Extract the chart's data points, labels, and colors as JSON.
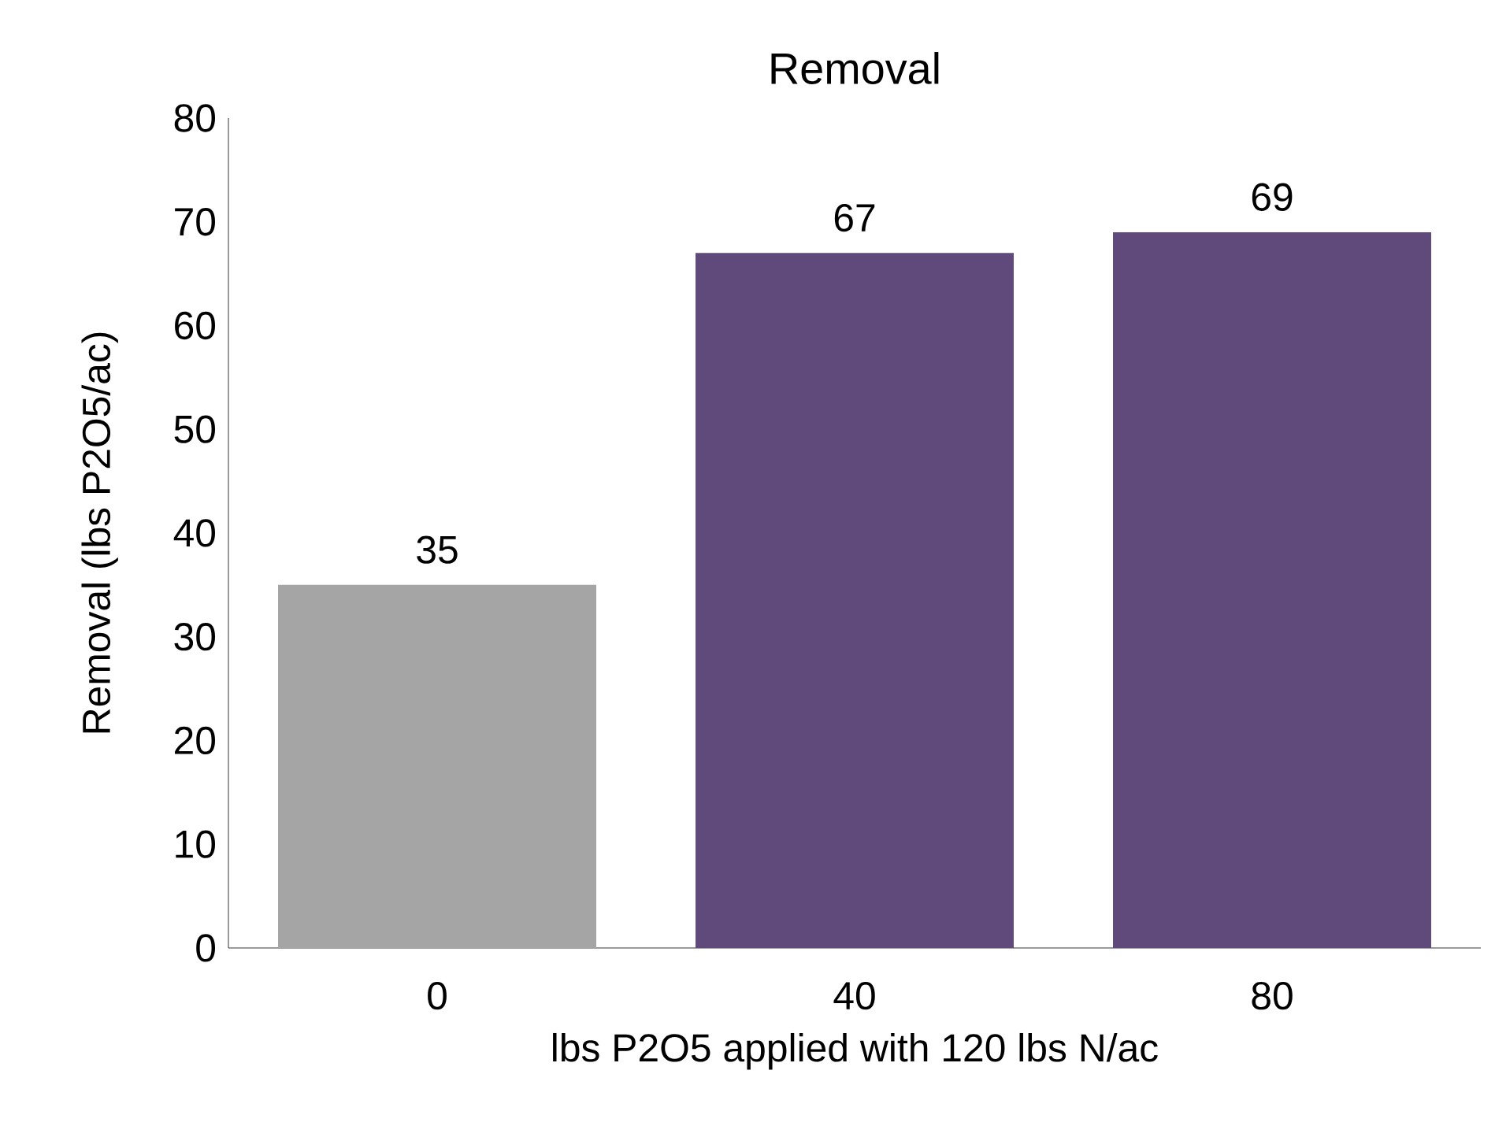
{
  "chart_data": {
    "type": "bar",
    "title": "Removal",
    "xlabel": "lbs P2O5 applied with 120 lbs N/ac",
    "ylabel": "Removal (lbs P2O5/ac)",
    "categories": [
      "0",
      "40",
      "80"
    ],
    "values": [
      35,
      67,
      69
    ],
    "colors": [
      "#a5a5a5",
      "#604a7b",
      "#604a7b"
    ],
    "ylim": [
      0,
      80
    ],
    "yticks": [
      0,
      10,
      20,
      30,
      40,
      50,
      60,
      70,
      80
    ],
    "grid": false,
    "data_labels": true
  }
}
